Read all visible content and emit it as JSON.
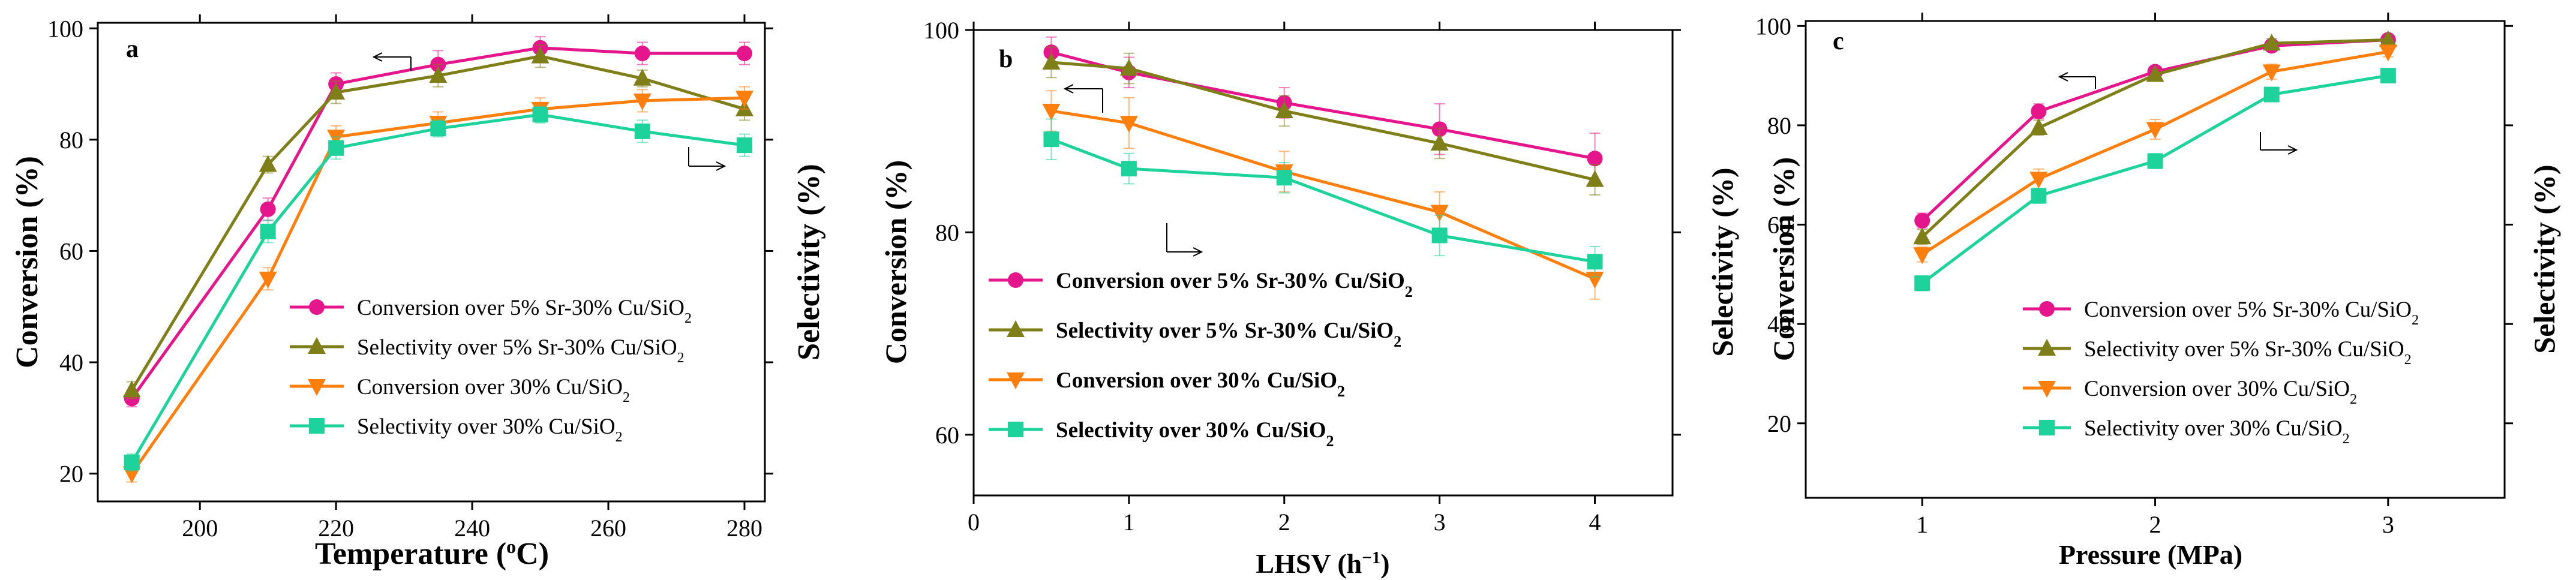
{
  "colors": {
    "conv_sr": "#e5168c",
    "sel_sr": "#7f7f1a",
    "conv_cu": "#ff7f0e",
    "sel_cu": "#1ed39b"
  },
  "chart_data": [
    {
      "type": "line",
      "panel_letter": "a",
      "xlabel_main": "Temperature (",
      "xlabel_sup": "o",
      "xlabel_tail": "C)",
      "ylabel_left": "Conversion (%)",
      "ylabel_right": "Selectivity (%)",
      "xlim": [
        185,
        283
      ],
      "ylim": [
        15,
        101
      ],
      "xticks": [
        200,
        220,
        240,
        260,
        280
      ],
      "yticks": [
        20,
        40,
        60,
        80,
        100
      ],
      "legend_position": "bottom-right",
      "series": [
        {
          "name": "Conversion over 5% Sr-30% Cu/SiO",
          "sub": "2",
          "key": "conv_sr",
          "marker": "circle",
          "x": [
            190,
            210,
            220,
            235,
            250,
            265,
            280
          ],
          "values": [
            33.5,
            67.5,
            90,
            93.5,
            96.5,
            95.5,
            95.5
          ],
          "err": [
            1.5,
            2,
            2,
            2.5,
            2,
            2,
            2
          ]
        },
        {
          "name": "Selectivity over 5% Sr-30% Cu/SiO",
          "sub": "2",
          "key": "sel_sr",
          "marker": "triangle-up",
          "x": [
            190,
            210,
            220,
            235,
            250,
            265,
            280
          ],
          "values": [
            35,
            75.5,
            88.5,
            91.5,
            95,
            91,
            85.5
          ],
          "err": [
            1.5,
            1.5,
            2,
            2,
            2,
            1.5,
            2
          ]
        },
        {
          "name": "Conversion over 30% Cu/SiO",
          "sub": "2",
          "key": "conv_cu",
          "marker": "triangle-down",
          "x": [
            190,
            210,
            220,
            235,
            250,
            265,
            280
          ],
          "values": [
            20,
            55,
            80.5,
            83,
            85.5,
            87,
            87.5
          ],
          "err": [
            1.5,
            2,
            2,
            2,
            2,
            2,
            2
          ]
        },
        {
          "name": "Selectivity over 30% Cu/SiO",
          "sub": "2",
          "key": "sel_cu",
          "marker": "square",
          "x": [
            190,
            210,
            220,
            235,
            250,
            265,
            280
          ],
          "values": [
            22,
            63.5,
            78.5,
            82,
            84.5,
            81.5,
            79
          ],
          "err": [
            1.5,
            2,
            2,
            1.5,
            1.5,
            2,
            2
          ]
        }
      ]
    },
    {
      "type": "line",
      "panel_letter": "b",
      "xlabel_main": "LHSV (h",
      "xlabel_sup": "−1",
      "xlabel_tail": ")",
      "ylabel_left": "Conversion (%)",
      "ylabel_right": "Selectivity (%)",
      "xlim": [
        0,
        4.5
      ],
      "ylim": [
        54,
        100
      ],
      "xticks": [
        0,
        1,
        2,
        3,
        4
      ],
      "yticks": [
        60,
        80,
        100
      ],
      "legend_position": "bottom-left",
      "series": [
        {
          "name": "Conversion over 5% Sr-30% Cu/SiO",
          "sub": "2",
          "key": "conv_sr",
          "marker": "circle",
          "x": [
            0.5,
            1,
            2,
            3,
            4
          ],
          "values": [
            97.8,
            95.8,
            92.8,
            90.2,
            87.3
          ],
          "err": [
            1.5,
            1.5,
            1.5,
            2.5,
            2.5
          ]
        },
        {
          "name": "Selectivity over 5% Sr-30% Cu/SiO",
          "sub": "2",
          "key": "sel_sr",
          "marker": "triangle-up",
          "x": [
            0.5,
            1,
            2,
            3,
            4
          ],
          "values": [
            96.8,
            96.2,
            92,
            88.8,
            85.2
          ],
          "err": [
            1.5,
            1.5,
            1.5,
            1.5,
            1.5
          ]
        },
        {
          "name": "Conversion over 30% Cu/SiO",
          "sub": "2",
          "key": "conv_cu",
          "marker": "triangle-down",
          "x": [
            0.5,
            1,
            2,
            3,
            4
          ],
          "values": [
            92,
            90.8,
            86,
            82,
            75.4
          ],
          "err": [
            2,
            2.5,
            2,
            2,
            2
          ]
        },
        {
          "name": "Selectivity over 30% Cu/SiO",
          "sub": "2",
          "key": "sel_cu",
          "marker": "square",
          "x": [
            0.5,
            1,
            2,
            3,
            4
          ],
          "values": [
            89.2,
            86.3,
            85.4,
            79.7,
            77.1
          ],
          "err": [
            2,
            1.5,
            1.5,
            2,
            1.5
          ]
        }
      ]
    },
    {
      "type": "line",
      "panel_letter": "c",
      "xlabel_main": "Pressure (MPa)",
      "xlabel_sup": "",
      "xlabel_tail": "",
      "ylabel_left": "Conversion (%)",
      "ylabel_right": "Selectivity (%)",
      "xlim": [
        0.5,
        3.5
      ],
      "ylim": [
        5,
        101
      ],
      "xticks": [
        1,
        2,
        3
      ],
      "yticks": [
        20,
        40,
        60,
        80,
        100
      ],
      "legend_position": "bottom-right",
      "series": [
        {
          "name": "Conversion over 5% Sr-30% Cu/SiO",
          "sub": "2",
          "key": "conv_sr",
          "marker": "circle",
          "x": [
            1,
            1.5,
            2,
            2.5,
            3
          ],
          "values": [
            60.8,
            82.8,
            90.8,
            96,
            97.2
          ],
          "err": [
            1.5,
            1.5,
            1,
            1,
            1
          ]
        },
        {
          "name": "Selectivity over 5% Sr-30% Cu/SiO",
          "sub": "2",
          "key": "sel_sr",
          "marker": "triangle-up",
          "x": [
            1,
            1.5,
            2,
            2.5,
            3
          ],
          "values": [
            57.5,
            79.5,
            90.2,
            96.5,
            97.2
          ],
          "err": [
            1.5,
            1.5,
            1,
            1,
            1
          ]
        },
        {
          "name": "Conversion over 30% Cu/SiO",
          "sub": "2",
          "key": "conv_cu",
          "marker": "triangle-down",
          "x": [
            1,
            1.5,
            2,
            2.5,
            3
          ],
          "values": [
            54,
            69.2,
            79.2,
            90.8,
            94.8
          ],
          "err": [
            1.5,
            2,
            2,
            1.5,
            1
          ]
        },
        {
          "name": "Selectivity over  30% Cu/SiO",
          "sub": "2",
          "key": "sel_cu",
          "marker": "square",
          "x": [
            1,
            1.5,
            2,
            2.5,
            3
          ],
          "values": [
            48.2,
            65.8,
            72.8,
            86.2,
            90
          ],
          "err": [
            1.5,
            1.5,
            1.5,
            1,
            1
          ]
        }
      ]
    }
  ]
}
